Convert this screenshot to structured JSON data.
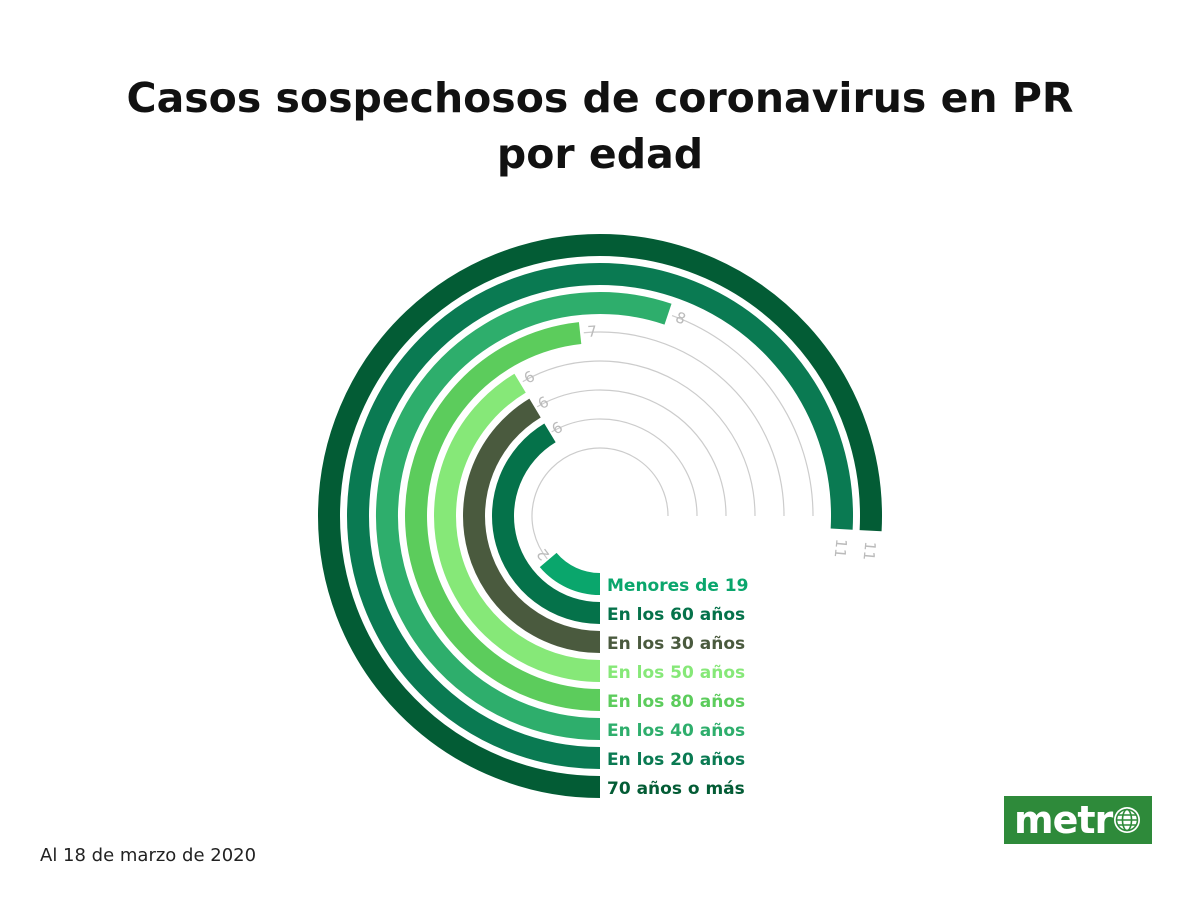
{
  "title": {
    "line1": "Casos sospechosos de coronavirus en PR",
    "line2": "por edad"
  },
  "footnote": "Al 18 de marzo de 2020",
  "logo": {
    "text": "metr",
    "icon": "globe-icon"
  },
  "chart_data": {
    "type": "radial-bar",
    "title": "Casos sospechosos de coronavirus en PR por edad",
    "max": 14.5,
    "series": [
      {
        "label": "Menores de 19",
        "value": 2,
        "color": "#0aa66c"
      },
      {
        "label": "En los 60 años",
        "value": 6,
        "color": "#05724a"
      },
      {
        "label": "En los 30 años",
        "value": 6,
        "color": "#4a5a3e"
      },
      {
        "label": "En los 50 años",
        "value": 6,
        "color": "#86e878"
      },
      {
        "label": "En los 80 años",
        "value": 7,
        "color": "#5ccc5c"
      },
      {
        "label": "En los 40 años",
        "value": 8,
        "color": "#2eae6c"
      },
      {
        "label": "En los 20 años",
        "value": 11,
        "color": "#0a7a52"
      },
      {
        "label": "70 años o más",
        "value": 11,
        "color": "#035c35"
      }
    ],
    "value_label_color": "#bbbbbb",
    "grid": true
  }
}
